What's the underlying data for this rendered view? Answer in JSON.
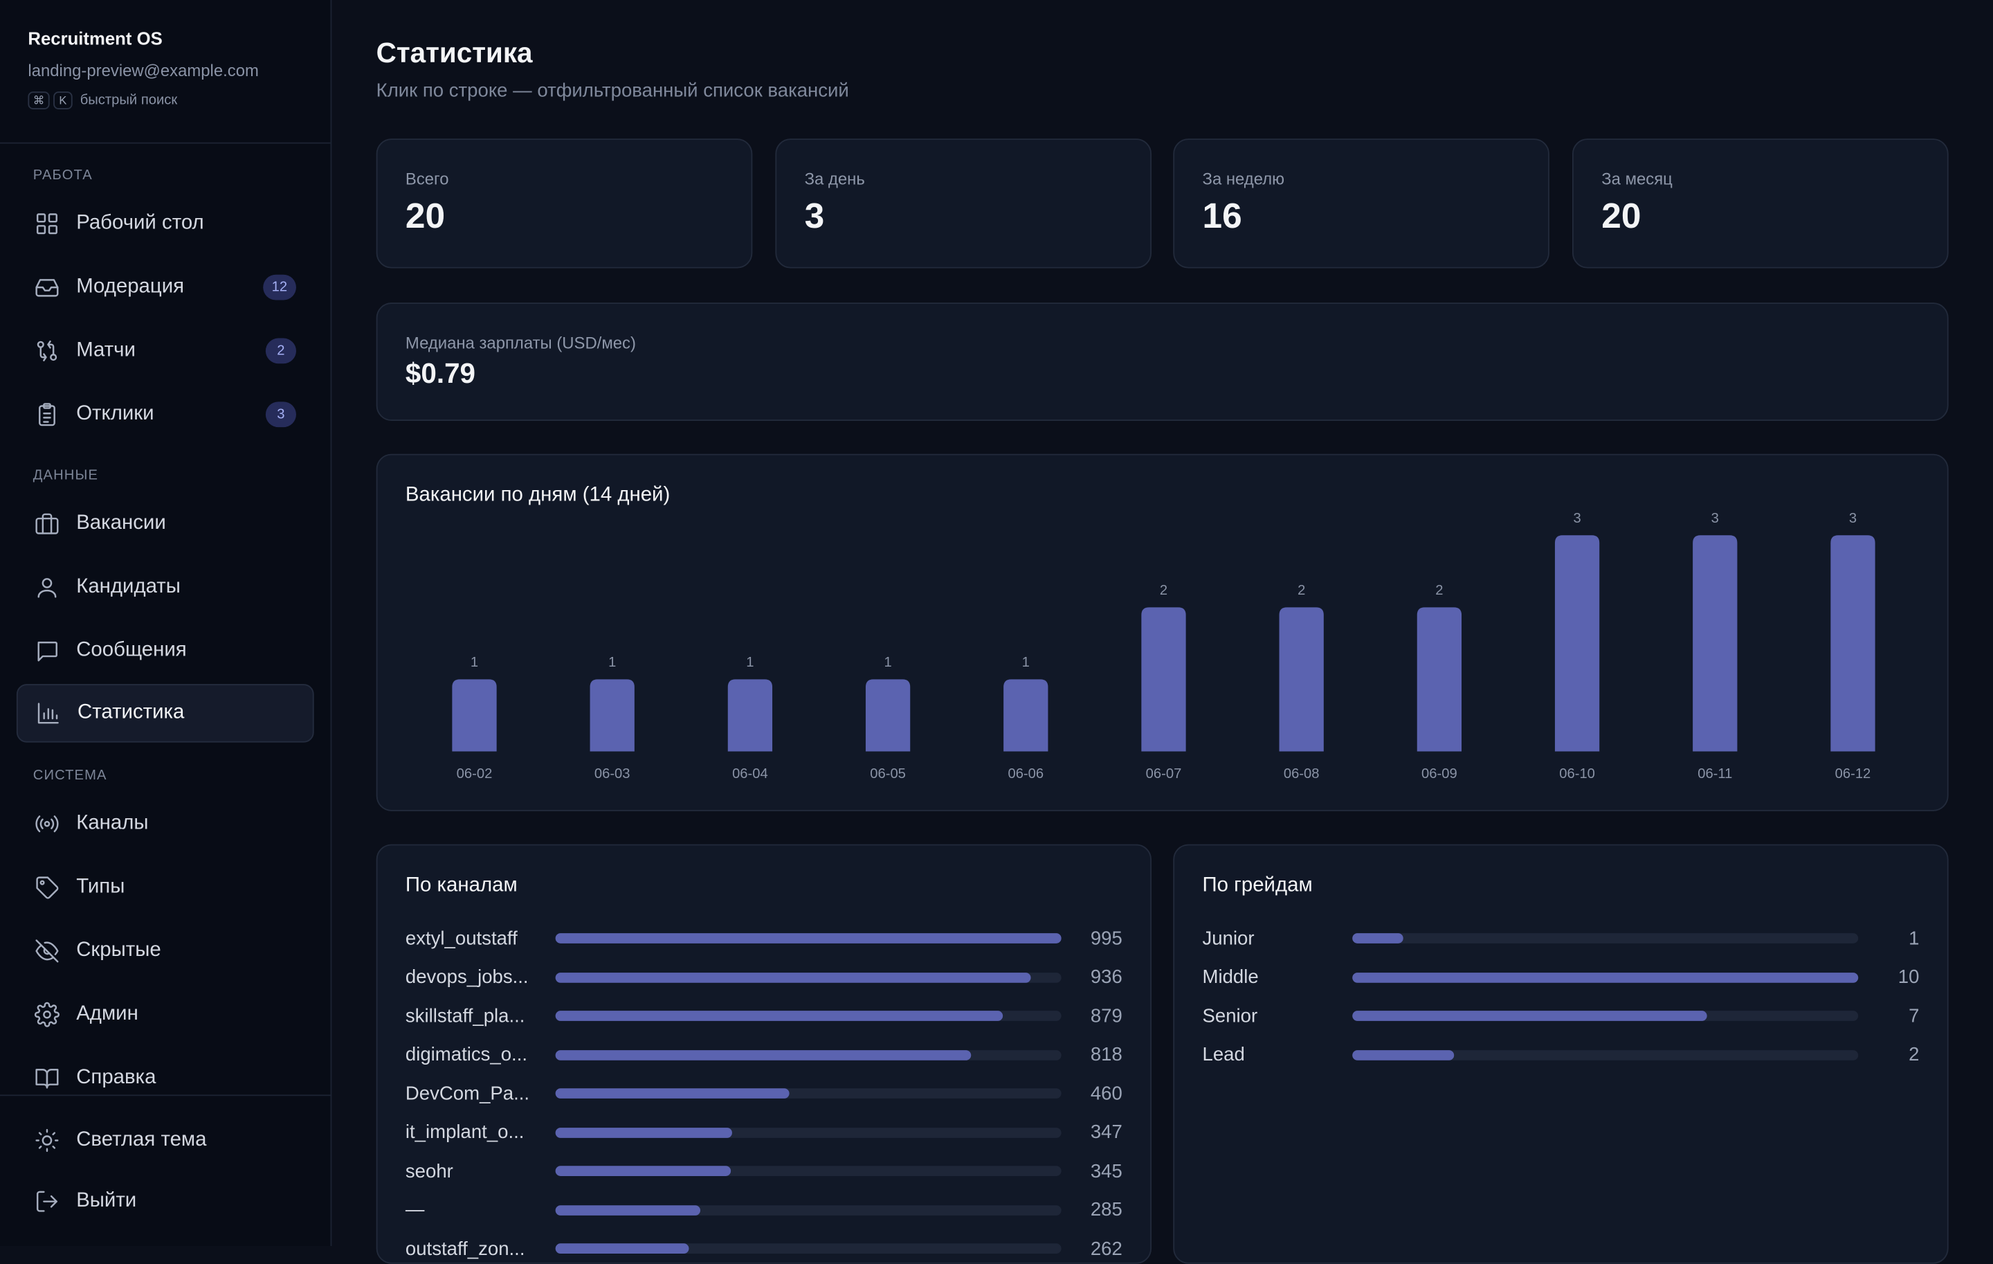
{
  "app": {
    "name": "Recruitment OS",
    "email": "landing-preview@example.com",
    "search_keys": [
      "⌘",
      "K"
    ],
    "search_hint": "быстрый поиск"
  },
  "sidebar": {
    "sections": [
      {
        "label": "РАБОТА",
        "items": [
          {
            "label": "Рабочий стол",
            "icon": "grid-icon"
          },
          {
            "label": "Модерация",
            "icon": "inbox-icon",
            "badge": "12"
          },
          {
            "label": "Матчи",
            "icon": "git-compare-icon",
            "badge": "2"
          },
          {
            "label": "Отклики",
            "icon": "clipboard-icon",
            "badge": "3"
          }
        ]
      },
      {
        "label": "ДАННЫЕ",
        "items": [
          {
            "label": "Вакансии",
            "icon": "briefcase-icon"
          },
          {
            "label": "Кандидаты",
            "icon": "user-icon"
          },
          {
            "label": "Сообщения",
            "icon": "message-icon"
          },
          {
            "label": "Статистика",
            "icon": "bar-chart-icon",
            "active": true
          }
        ]
      },
      {
        "label": "СИСТЕМА",
        "items": [
          {
            "label": "Каналы",
            "icon": "radio-icon"
          },
          {
            "label": "Типы",
            "icon": "tag-icon"
          },
          {
            "label": "Скрытые",
            "icon": "eye-off-icon"
          },
          {
            "label": "Админ",
            "icon": "gear-icon"
          },
          {
            "label": "Справка",
            "icon": "book-icon"
          }
        ]
      }
    ],
    "footer": [
      {
        "label": "Светлая тема",
        "icon": "sun-icon"
      },
      {
        "label": "Выйти",
        "icon": "logout-icon"
      }
    ]
  },
  "page": {
    "title": "Статистика",
    "subtitle": "Клик по строке — отфильтрованный список вакансий"
  },
  "stats": [
    {
      "label": "Всего",
      "value": "20"
    },
    {
      "label": "За день",
      "value": "3"
    },
    {
      "label": "За неделю",
      "value": "16"
    },
    {
      "label": "За месяц",
      "value": "20"
    }
  ],
  "median": {
    "label": "Медиана зарплаты (USD/мес)",
    "value": "$0.79"
  },
  "colors": {
    "accent": "#5b63b0",
    "bg": "#0b0f1a",
    "card": "#111827"
  },
  "chart_data": {
    "type": "bar",
    "title": "Вакансии по дням (14 дней)",
    "categories": [
      "06-02",
      "06-03",
      "06-04",
      "06-05",
      "06-06",
      "06-07",
      "06-08",
      "06-09",
      "06-10",
      "06-11",
      "06-12"
    ],
    "values": [
      1,
      1,
      1,
      1,
      1,
      2,
      2,
      2,
      3,
      3,
      3
    ],
    "ylim": [
      0,
      3
    ],
    "xlabel": "",
    "ylabel": "",
    "grid": false,
    "data_labels": true
  },
  "channels": {
    "title": "По каналам",
    "max": 995,
    "rows": [
      {
        "name": "extyl_outstaff",
        "value": 995
      },
      {
        "name": "devops_jobs...",
        "value": 936
      },
      {
        "name": "skillstaff_pla...",
        "value": 879
      },
      {
        "name": "digimatics_o...",
        "value": 818
      },
      {
        "name": "DevCom_Pa...",
        "value": 460
      },
      {
        "name": "it_implant_o...",
        "value": 347
      },
      {
        "name": "seohr",
        "value": 345
      },
      {
        "name": "—",
        "value": 285
      },
      {
        "name": "outstaff_zon...",
        "value": 262
      }
    ]
  },
  "grades": {
    "title": "По грейдам",
    "max": 10,
    "rows": [
      {
        "name": "Junior",
        "value": 1
      },
      {
        "name": "Middle",
        "value": 10
      },
      {
        "name": "Senior",
        "value": 7
      },
      {
        "name": "Lead",
        "value": 2
      }
    ]
  }
}
